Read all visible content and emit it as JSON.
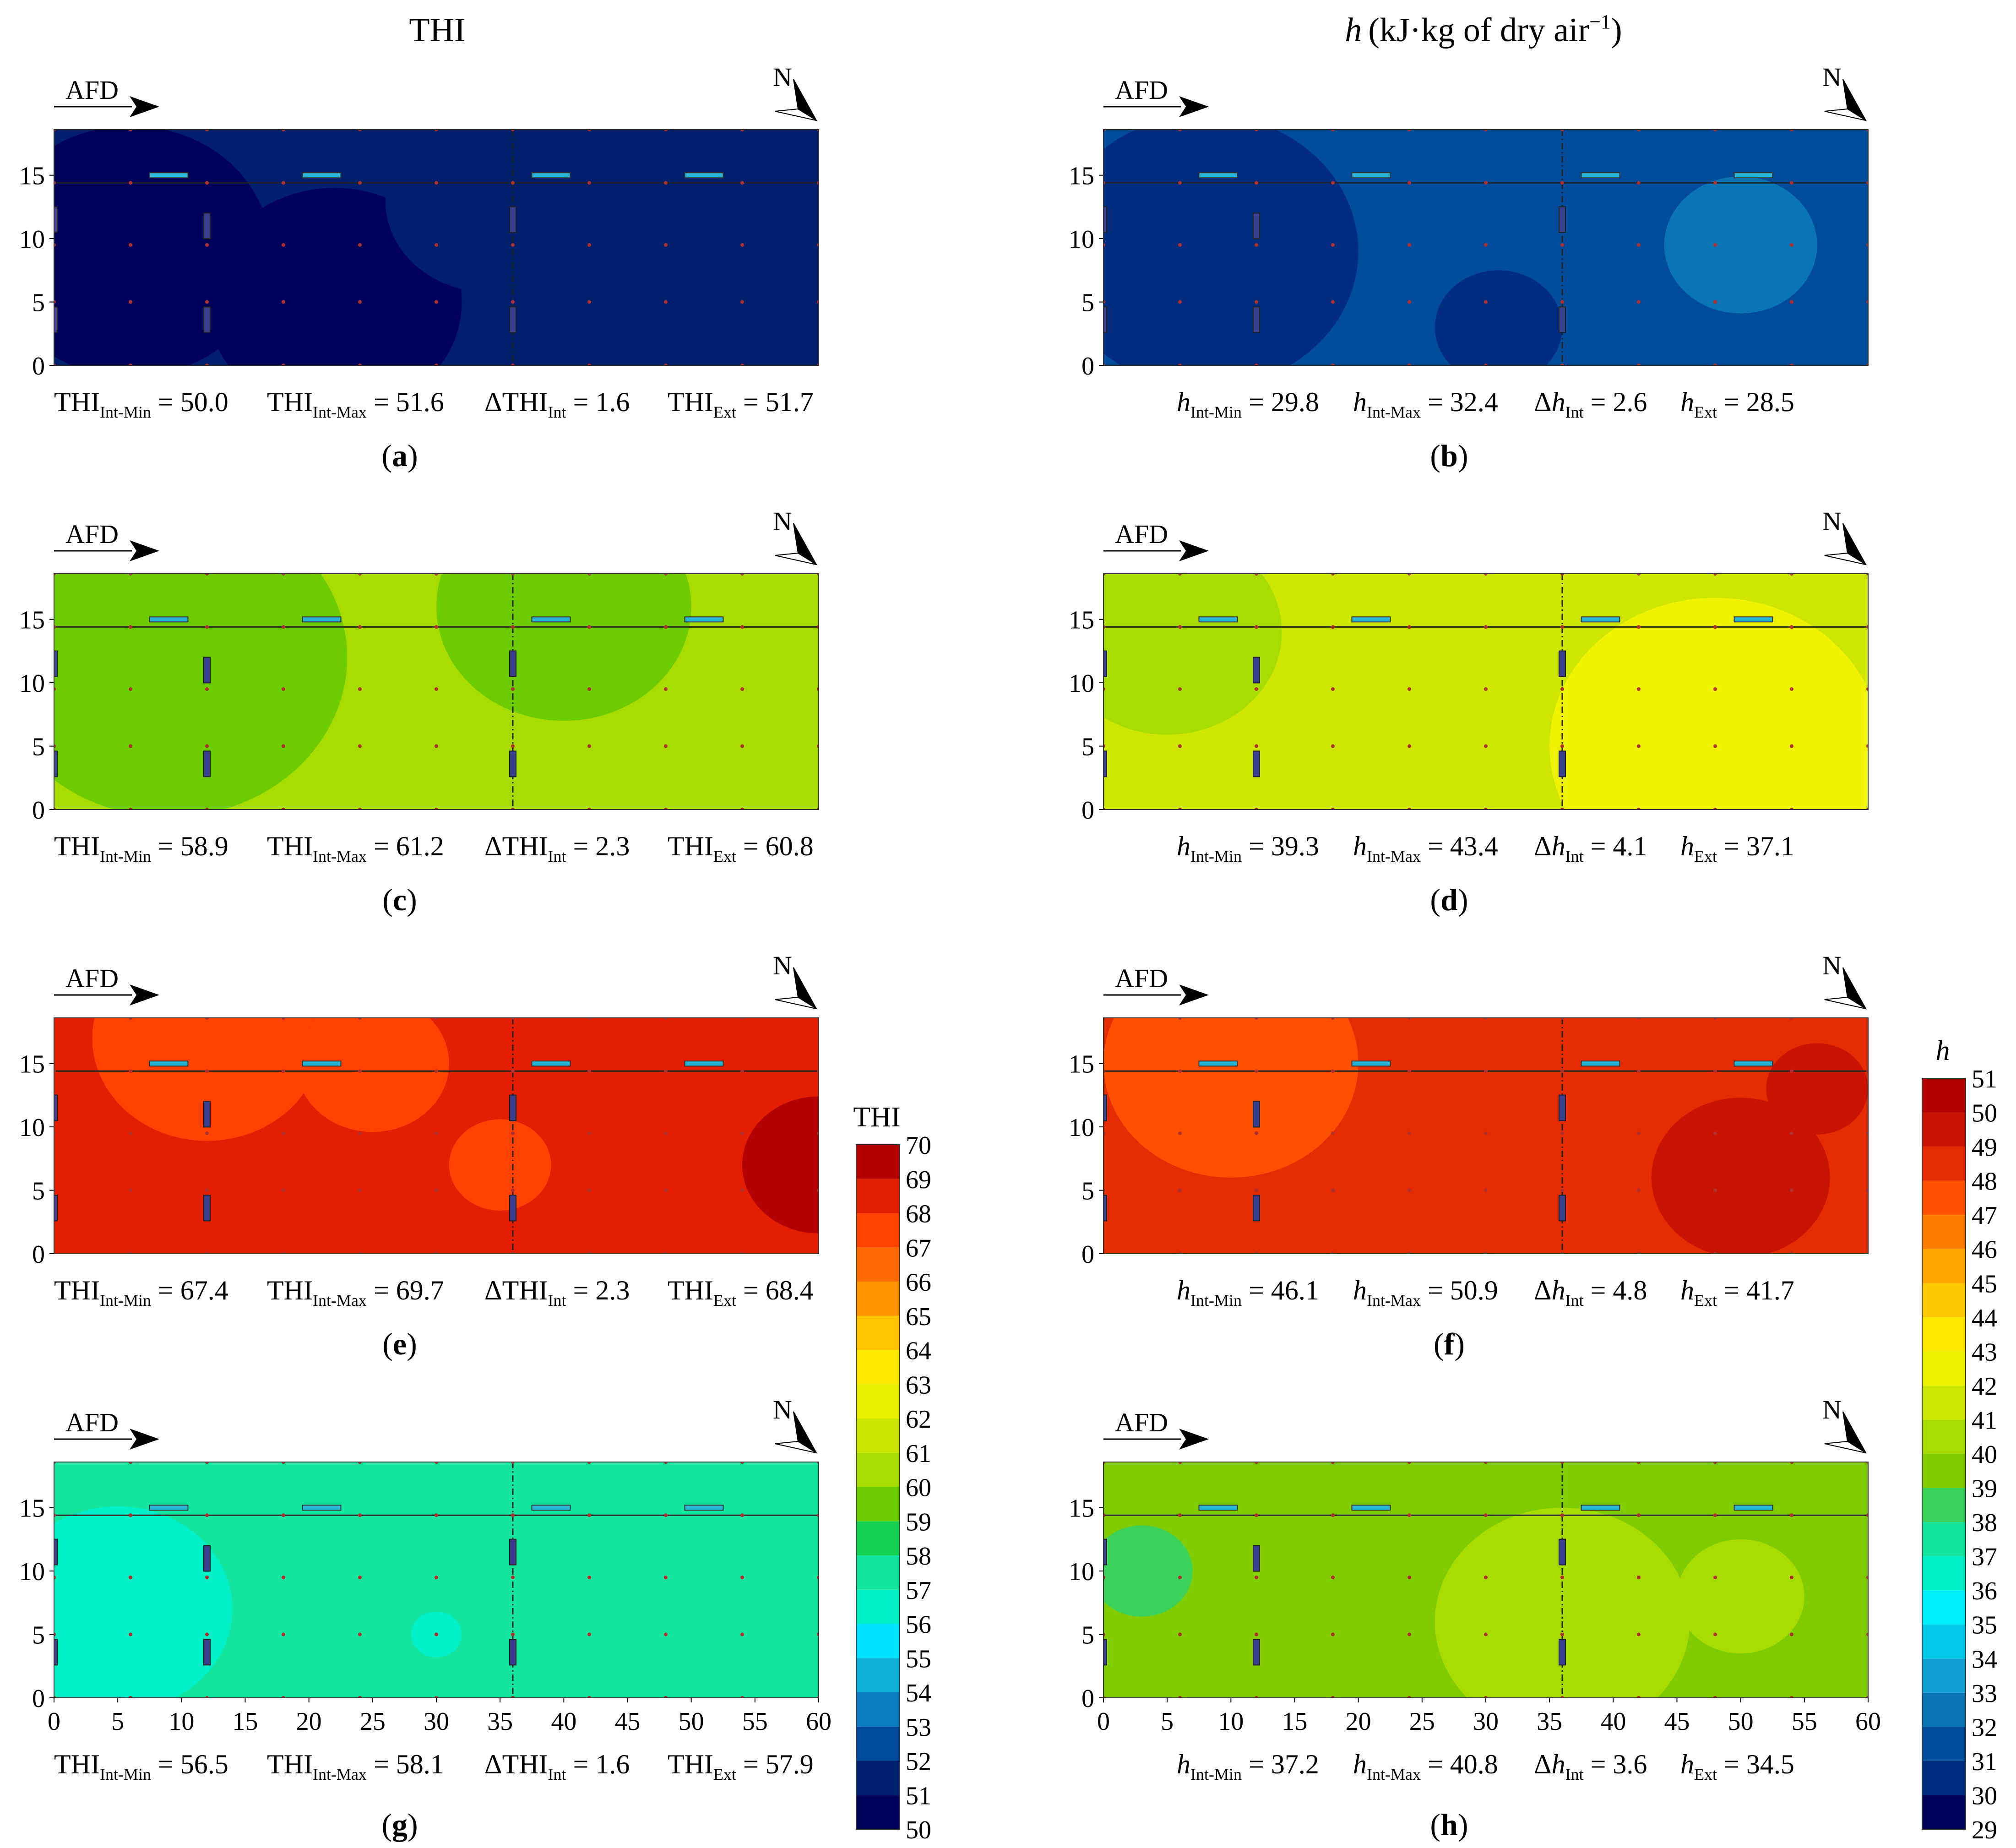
{
  "headers": {
    "left": "THI",
    "right_var": "h",
    "right_units": "(kJ·kg of dry air",
    "right_sup": "−1",
    "right_close": ")"
  },
  "airflow_label": "AFD",
  "north_label": "N",
  "chart_data": [
    {
      "type": "heatmap",
      "id": "a",
      "caption": "a",
      "variable": "THI",
      "stats": {
        "min_label": "THI",
        "min_sub": "Int-Min",
        "min": "50.0",
        "max_label": "THI",
        "max_sub": "Int-Max",
        "max": "51.6",
        "delta_label": "ΔTHI",
        "delta_sub": "Int",
        "delta": "1.6",
        "ext_label": "THI",
        "ext_sub": "Ext",
        "ext": "51.7"
      },
      "base_level": 51,
      "regions": [
        {
          "cx": 6,
          "cy": 9,
          "r": 11,
          "level": 50
        },
        {
          "cx": 22,
          "cy": 5,
          "r": 10,
          "level": 50
        },
        {
          "cx": 34,
          "cy": 13,
          "r": 8,
          "level": 51
        }
      ],
      "xlim": [
        0,
        60
      ],
      "ylim": [
        0,
        18.6
      ]
    },
    {
      "type": "heatmap",
      "id": "b",
      "caption": "b",
      "variable": "h",
      "stats": {
        "min_label": "h",
        "min_sub": "Int-Min",
        "min": "29.8",
        "max_label": "h",
        "max_sub": "Int-Max",
        "max": "32.4",
        "delta_label": "Δh",
        "delta_sub": "Int",
        "delta": "2.6",
        "ext_label": "h",
        "ext_sub": "Ext",
        "ext": "28.5"
      },
      "base_level": 31,
      "regions": [
        {
          "cx": 8,
          "cy": 9,
          "r": 12,
          "level": 30
        },
        {
          "cx": 31,
          "cy": 3,
          "r": 5,
          "level": 30
        },
        {
          "cx": 50,
          "cy": 9.5,
          "r": 6,
          "level": 32
        }
      ],
      "xlim": [
        0,
        60
      ],
      "ylim": [
        0,
        18.6
      ]
    },
    {
      "type": "heatmap",
      "id": "c",
      "caption": "c",
      "variable": "THI",
      "stats": {
        "min_label": "THI",
        "min_sub": "Int-Min",
        "min": "58.9",
        "max_label": "THI",
        "max_sub": "Int-Max",
        "max": "61.2",
        "delta_label": "ΔTHI",
        "delta_sub": "Int",
        "delta": "2.3",
        "ext_label": "THI",
        "ext_sub": "Ext",
        "ext": "60.8"
      },
      "base_level": 60,
      "regions": [
        {
          "cx": 9,
          "cy": 12,
          "r": 14,
          "level": 59
        },
        {
          "cx": 40,
          "cy": 16,
          "r": 10,
          "level": 59
        }
      ],
      "xlim": [
        0,
        60
      ],
      "ylim": [
        0,
        18.6
      ]
    },
    {
      "type": "heatmap",
      "id": "d",
      "caption": "d",
      "variable": "h",
      "stats": {
        "min_label": "h",
        "min_sub": "Int-Min",
        "min": "39.3",
        "max_label": "h",
        "max_sub": "Int-Max",
        "max": "43.4",
        "delta_label": "Δh",
        "delta_sub": "Int",
        "delta": "4.1",
        "ext_label": "h",
        "ext_sub": "Ext",
        "ext": "37.1"
      },
      "base_level": 41,
      "regions": [
        {
          "cx": 5,
          "cy": 14,
          "r": 9,
          "level": 40
        },
        {
          "cx": 48,
          "cy": 5,
          "r": 13,
          "level": 42
        }
      ],
      "xlim": [
        0,
        60
      ],
      "ylim": [
        0,
        18.6
      ]
    },
    {
      "type": "heatmap",
      "id": "e",
      "caption": "e",
      "variable": "THI",
      "stats": {
        "min_label": "THI",
        "min_sub": "Int-Min",
        "min": "67.4",
        "max_label": "THI",
        "max_sub": "Int-Max",
        "max": "69.7",
        "delta_label": "ΔTHI",
        "delta_sub": "Int",
        "delta": "2.3",
        "ext_label": "THI",
        "ext_sub": "Ext",
        "ext": "68.4"
      },
      "base_level": 68,
      "regions": [
        {
          "cx": 12,
          "cy": 17,
          "r": 9,
          "level": 67
        },
        {
          "cx": 25,
          "cy": 15,
          "r": 6,
          "level": 67
        },
        {
          "cx": 35,
          "cy": 7,
          "r": 4,
          "level": 67
        },
        {
          "cx": 60,
          "cy": 7,
          "r": 6,
          "level": 69
        }
      ],
      "xlim": [
        0,
        60
      ],
      "ylim": [
        0,
        18.6
      ]
    },
    {
      "type": "heatmap",
      "id": "f",
      "caption": "f",
      "variable": "h",
      "stats": {
        "min_label": "h",
        "min_sub": "Int-Min",
        "min": "46.1",
        "max_label": "h",
        "max_sub": "Int-Max",
        "max": "50.9",
        "delta_label": "Δh",
        "delta_sub": "Int",
        "delta": "4.8",
        "ext_label": "h",
        "ext_sub": "Ext",
        "ext": "41.7"
      },
      "base_level": 48,
      "regions": [
        {
          "cx": 10,
          "cy": 15,
          "r": 10,
          "level": 47
        },
        {
          "cx": 50,
          "cy": 6,
          "r": 7,
          "level": 49
        },
        {
          "cx": 56,
          "cy": 13,
          "r": 4,
          "level": 49
        }
      ],
      "xlim": [
        0,
        60
      ],
      "ylim": [
        0,
        18.6
      ]
    },
    {
      "type": "heatmap",
      "id": "g",
      "caption": "g",
      "variable": "THI",
      "stats": {
        "min_label": "THI",
        "min_sub": "Int-Min",
        "min": "56.5",
        "max_label": "THI",
        "max_sub": "Int-Max",
        "max": "58.1",
        "delta_label": "ΔTHI",
        "delta_sub": "Int",
        "delta": "1.6",
        "ext_label": "THI",
        "ext_sub": "Ext",
        "ext": "57.9"
      },
      "base_level": 57,
      "regions": [
        {
          "cx": 5,
          "cy": 7,
          "r": 9,
          "level": 56
        },
        {
          "cx": 30,
          "cy": 5,
          "r": 2,
          "level": 56
        }
      ],
      "xlim": [
        0,
        60
      ],
      "ylim": [
        0,
        18.6
      ]
    },
    {
      "type": "heatmap",
      "id": "h",
      "caption": "h",
      "variable": "h",
      "stats": {
        "min_label": "h",
        "min_sub": "Int-Min",
        "min": "37.2",
        "max_label": "h",
        "max_sub": "Int-Max",
        "max": "40.8",
        "delta_label": "Δh",
        "delta_sub": "Int",
        "delta": "3.6",
        "ext_label": "h",
        "ext_sub": "Ext",
        "ext": "34.5"
      },
      "base_level": 39,
      "regions": [
        {
          "cx": 36,
          "cy": 6,
          "r": 10,
          "level": 40
        },
        {
          "cx": 50,
          "cy": 8,
          "r": 5,
          "level": 40
        },
        {
          "cx": 3,
          "cy": 10,
          "r": 4,
          "level": 38
        }
      ],
      "xlim": [
        0,
        60
      ],
      "ylim": [
        0,
        18.6
      ]
    }
  ],
  "axes": {
    "x_ticks": [
      0,
      5,
      10,
      15,
      20,
      25,
      30,
      35,
      40,
      45,
      50,
      55,
      60
    ],
    "y_ticks": [
      0,
      5,
      10,
      15
    ]
  },
  "legends": {
    "thi": {
      "title": "THI",
      "levels": [
        50,
        51,
        52,
        53,
        54,
        55,
        56,
        57,
        58,
        59,
        60,
        61,
        62,
        63,
        64,
        65,
        66,
        67,
        68,
        69,
        70
      ]
    },
    "h": {
      "title": "h",
      "levels": [
        29,
        30,
        31,
        32,
        33,
        34,
        35,
        36,
        37,
        38,
        39,
        40,
        41,
        42,
        43,
        44,
        45,
        46,
        47,
        48,
        49,
        50,
        51
      ]
    }
  },
  "colors": {
    "thi_scale": [
      "#00005a",
      "#00206e",
      "#004c9a",
      "#0a7bbd",
      "#0fb0d8",
      "#00e2ff",
      "#00f0c8",
      "#14e6a0",
      "#14d150",
      "#6ccc00",
      "#a8dc00",
      "#c8e400",
      "#e9f000",
      "#ffeb00",
      "#ffc400",
      "#ff9600",
      "#ff6a00",
      "#ff4200",
      "#e41e00",
      "#b40000"
    ],
    "h_scale": [
      "#00005a",
      "#002d80",
      "#004c9a",
      "#0a74b5",
      "#0ea0d0",
      "#00c8e6",
      "#00f0ff",
      "#00f0c8",
      "#14e6a0",
      "#3cd25a",
      "#80cc00",
      "#a8dc00",
      "#cce600",
      "#eef300",
      "#ffeb00",
      "#ffc800",
      "#ffa500",
      "#ff7d00",
      "#ff5000",
      "#e42c00",
      "#c81400",
      "#b40000"
    ]
  }
}
